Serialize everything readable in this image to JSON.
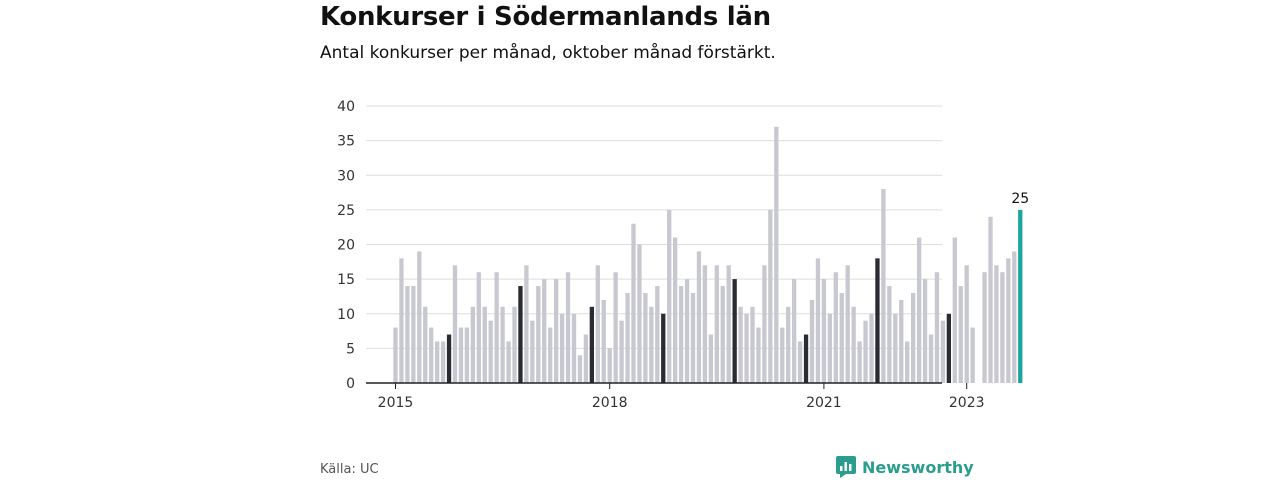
{
  "title": "Konkurser i Södermanlands län",
  "subtitle": "Antal konkurser per månad, oktober månad förstärkt.",
  "source": "Källa: UC",
  "brand": "Newsworthy",
  "colors": {
    "bar": "#c8c8d0",
    "highlight": "#2b2b33",
    "latest": "#1aa69a",
    "grid": "#dddddd",
    "axis": "#222222",
    "brand": "#2a9d8f"
  },
  "chart_data": {
    "type": "bar",
    "ylim": [
      0,
      40
    ],
    "yticks": [
      0,
      5,
      10,
      15,
      20,
      25,
      30,
      35,
      40
    ],
    "xticks": [
      {
        "label": "2015",
        "index": 0
      },
      {
        "label": "2018",
        "index": 36
      },
      {
        "label": "2021",
        "index": 72
      },
      {
        "label": "2023",
        "index": 96
      }
    ],
    "highlight_month": "oktober",
    "highlight_indices": [
      9,
      21,
      33,
      45,
      57,
      69,
      81,
      93
    ],
    "latest_label": "25",
    "values": [
      8,
      18,
      14,
      14,
      19,
      11,
      8,
      6,
      6,
      7,
      17,
      8,
      8,
      11,
      16,
      11,
      9,
      16,
      11,
      6,
      11,
      14,
      17,
      9,
      14,
      15,
      8,
      15,
      10,
      16,
      10,
      4,
      7,
      11,
      17,
      12,
      5,
      16,
      9,
      13,
      23,
      20,
      13,
      11,
      14,
      10,
      25,
      21,
      14,
      15,
      13,
      19,
      17,
      7,
      17,
      14,
      17,
      15,
      11,
      10,
      11,
      8,
      17,
      25,
      37,
      8,
      11,
      15,
      6,
      7,
      12,
      18,
      15,
      10,
      16,
      13,
      17,
      11,
      6,
      9,
      10,
      18,
      28,
      14,
      10,
      12,
      6,
      13,
      21,
      15,
      7,
      16,
      9,
      10,
      21,
      14,
      17,
      8,
      0,
      16,
      24,
      17,
      16,
      18,
      19,
      25
    ]
  }
}
